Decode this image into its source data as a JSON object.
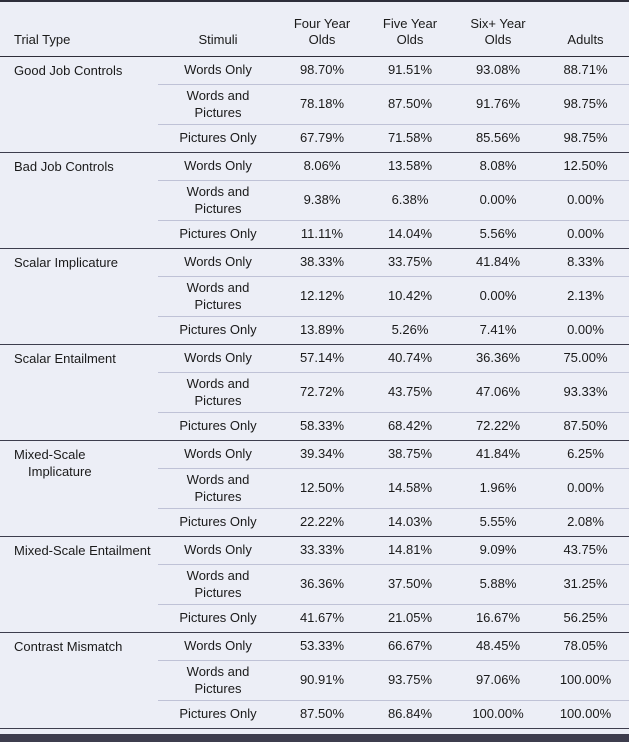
{
  "chart_data": {
    "type": "table",
    "headers": {
      "trial_type": "Trial Type",
      "stimuli": "Stimuli",
      "age_groups": [
        "Four Year Olds",
        "Five Year Olds",
        "Six+ Year Olds",
        "Adults"
      ]
    },
    "groups": [
      {
        "trial_type": "Good Job Controls",
        "rows": [
          {
            "stimuli": "Words Only",
            "values": [
              "98.70%",
              "91.51%",
              "93.08%",
              "88.71%"
            ]
          },
          {
            "stimuli": "Words and Pictures",
            "values": [
              "78.18%",
              "87.50%",
              "91.76%",
              "98.75%"
            ]
          },
          {
            "stimuli": "Pictures Only",
            "values": [
              "67.79%",
              "71.58%",
              "85.56%",
              "98.75%"
            ]
          }
        ]
      },
      {
        "trial_type": "Bad Job Controls",
        "rows": [
          {
            "stimuli": "Words Only",
            "values": [
              "8.06%",
              "13.58%",
              "8.08%",
              "12.50%"
            ]
          },
          {
            "stimuli": "Words and Pictures",
            "values": [
              "9.38%",
              "6.38%",
              "0.00%",
              "0.00%"
            ]
          },
          {
            "stimuli": "Pictures Only",
            "values": [
              "11.11%",
              "14.04%",
              "5.56%",
              "0.00%"
            ]
          }
        ]
      },
      {
        "trial_type": "Scalar Implicature",
        "rows": [
          {
            "stimuli": "Words Only",
            "values": [
              "38.33%",
              "33.75%",
              "41.84%",
              "8.33%"
            ]
          },
          {
            "stimuli": "Words and Pictures",
            "values": [
              "12.12%",
              "10.42%",
              "0.00%",
              "2.13%"
            ]
          },
          {
            "stimuli": "Pictures Only",
            "values": [
              "13.89%",
              "5.26%",
              "7.41%",
              "0.00%"
            ]
          }
        ]
      },
      {
        "trial_type": "Scalar Entailment",
        "rows": [
          {
            "stimuli": "Words Only",
            "values": [
              "57.14%",
              "40.74%",
              "36.36%",
              "75.00%"
            ]
          },
          {
            "stimuli": "Words and Pictures",
            "values": [
              "72.72%",
              "43.75%",
              "47.06%",
              "93.33%"
            ]
          },
          {
            "stimuli": "Pictures Only",
            "values": [
              "58.33%",
              "68.42%",
              "72.22%",
              "87.50%"
            ]
          }
        ]
      },
      {
        "trial_type": "Mixed-Scale Implicature",
        "rows": [
          {
            "stimuli": "Words Only",
            "values": [
              "39.34%",
              "38.75%",
              "41.84%",
              "6.25%"
            ]
          },
          {
            "stimuli": "Words and Pictures",
            "values": [
              "12.50%",
              "14.58%",
              "1.96%",
              "0.00%"
            ]
          },
          {
            "stimuli": "Pictures Only",
            "values": [
              "22.22%",
              "14.03%",
              "5.55%",
              "2.08%"
            ]
          }
        ]
      },
      {
        "trial_type": "Mixed-Scale Entailment",
        "rows": [
          {
            "stimuli": "Words Only",
            "values": [
              "33.33%",
              "14.81%",
              "9.09%",
              "43.75%"
            ]
          },
          {
            "stimuli": "Words and Pictures",
            "values": [
              "36.36%",
              "37.50%",
              "5.88%",
              "31.25%"
            ]
          },
          {
            "stimuli": "Pictures Only",
            "values": [
              "41.67%",
              "21.05%",
              "16.67%",
              "56.25%"
            ]
          }
        ]
      },
      {
        "trial_type": "Contrast Mismatch",
        "rows": [
          {
            "stimuli": "Words Only",
            "values": [
              "53.33%",
              "66.67%",
              "48.45%",
              "78.05%"
            ]
          },
          {
            "stimuli": "Words and Pictures",
            "values": [
              "90.91%",
              "93.75%",
              "97.06%",
              "100.00%"
            ]
          },
          {
            "stimuli": "Pictures Only",
            "values": [
              "87.50%",
              "86.84%",
              "100.00%",
              "100.00%"
            ]
          }
        ]
      }
    ],
    "colors": {
      "background": "#eceef6",
      "rule_dark": "#2e2e3a",
      "rule_group": "#3d3d4d",
      "rule_light": "#bfc2d6",
      "text": "#1a1a1a"
    }
  }
}
